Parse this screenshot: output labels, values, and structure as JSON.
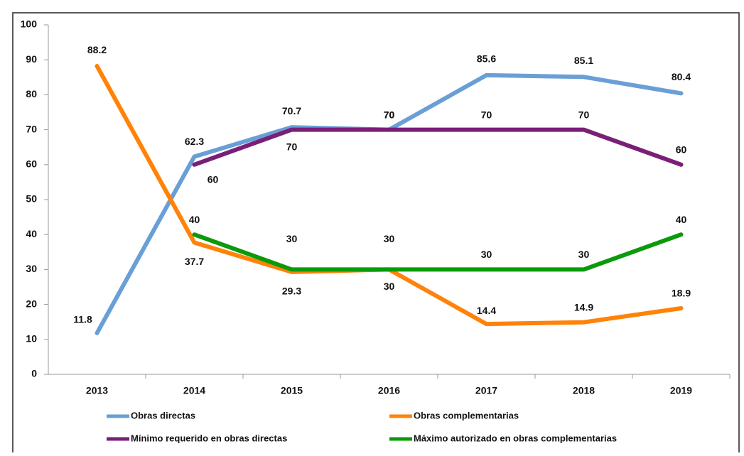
{
  "chart_data": {
    "type": "line",
    "categories": [
      "2013",
      "2014",
      "2015",
      "2016",
      "2017",
      "2018",
      "2019"
    ],
    "series": [
      {
        "name": "Obras directas",
        "color": "#6a9fd6",
        "values": [
          11.8,
          62.3,
          70.7,
          70,
          85.6,
          85.1,
          80.4
        ]
      },
      {
        "name": "Obras complementarias",
        "color": "#ff8209",
        "values": [
          88.2,
          37.7,
          29.3,
          30,
          14.4,
          14.9,
          18.9
        ]
      },
      {
        "name": "Mínimo requerido en obras directas",
        "color": "#7a1e78",
        "values": [
          null,
          60,
          70,
          70,
          70,
          70,
          60
        ]
      },
      {
        "name": "Máximo autorizado en obras complementarias",
        "color": "#0b9a0b",
        "values": [
          null,
          40,
          30,
          30,
          30,
          30,
          40
        ]
      }
    ],
    "ylim": [
      0,
      100
    ],
    "yticks": [
      0,
      10,
      20,
      30,
      40,
      50,
      60,
      70,
      80,
      90,
      100
    ],
    "grid": false,
    "legend": "bottom"
  }
}
